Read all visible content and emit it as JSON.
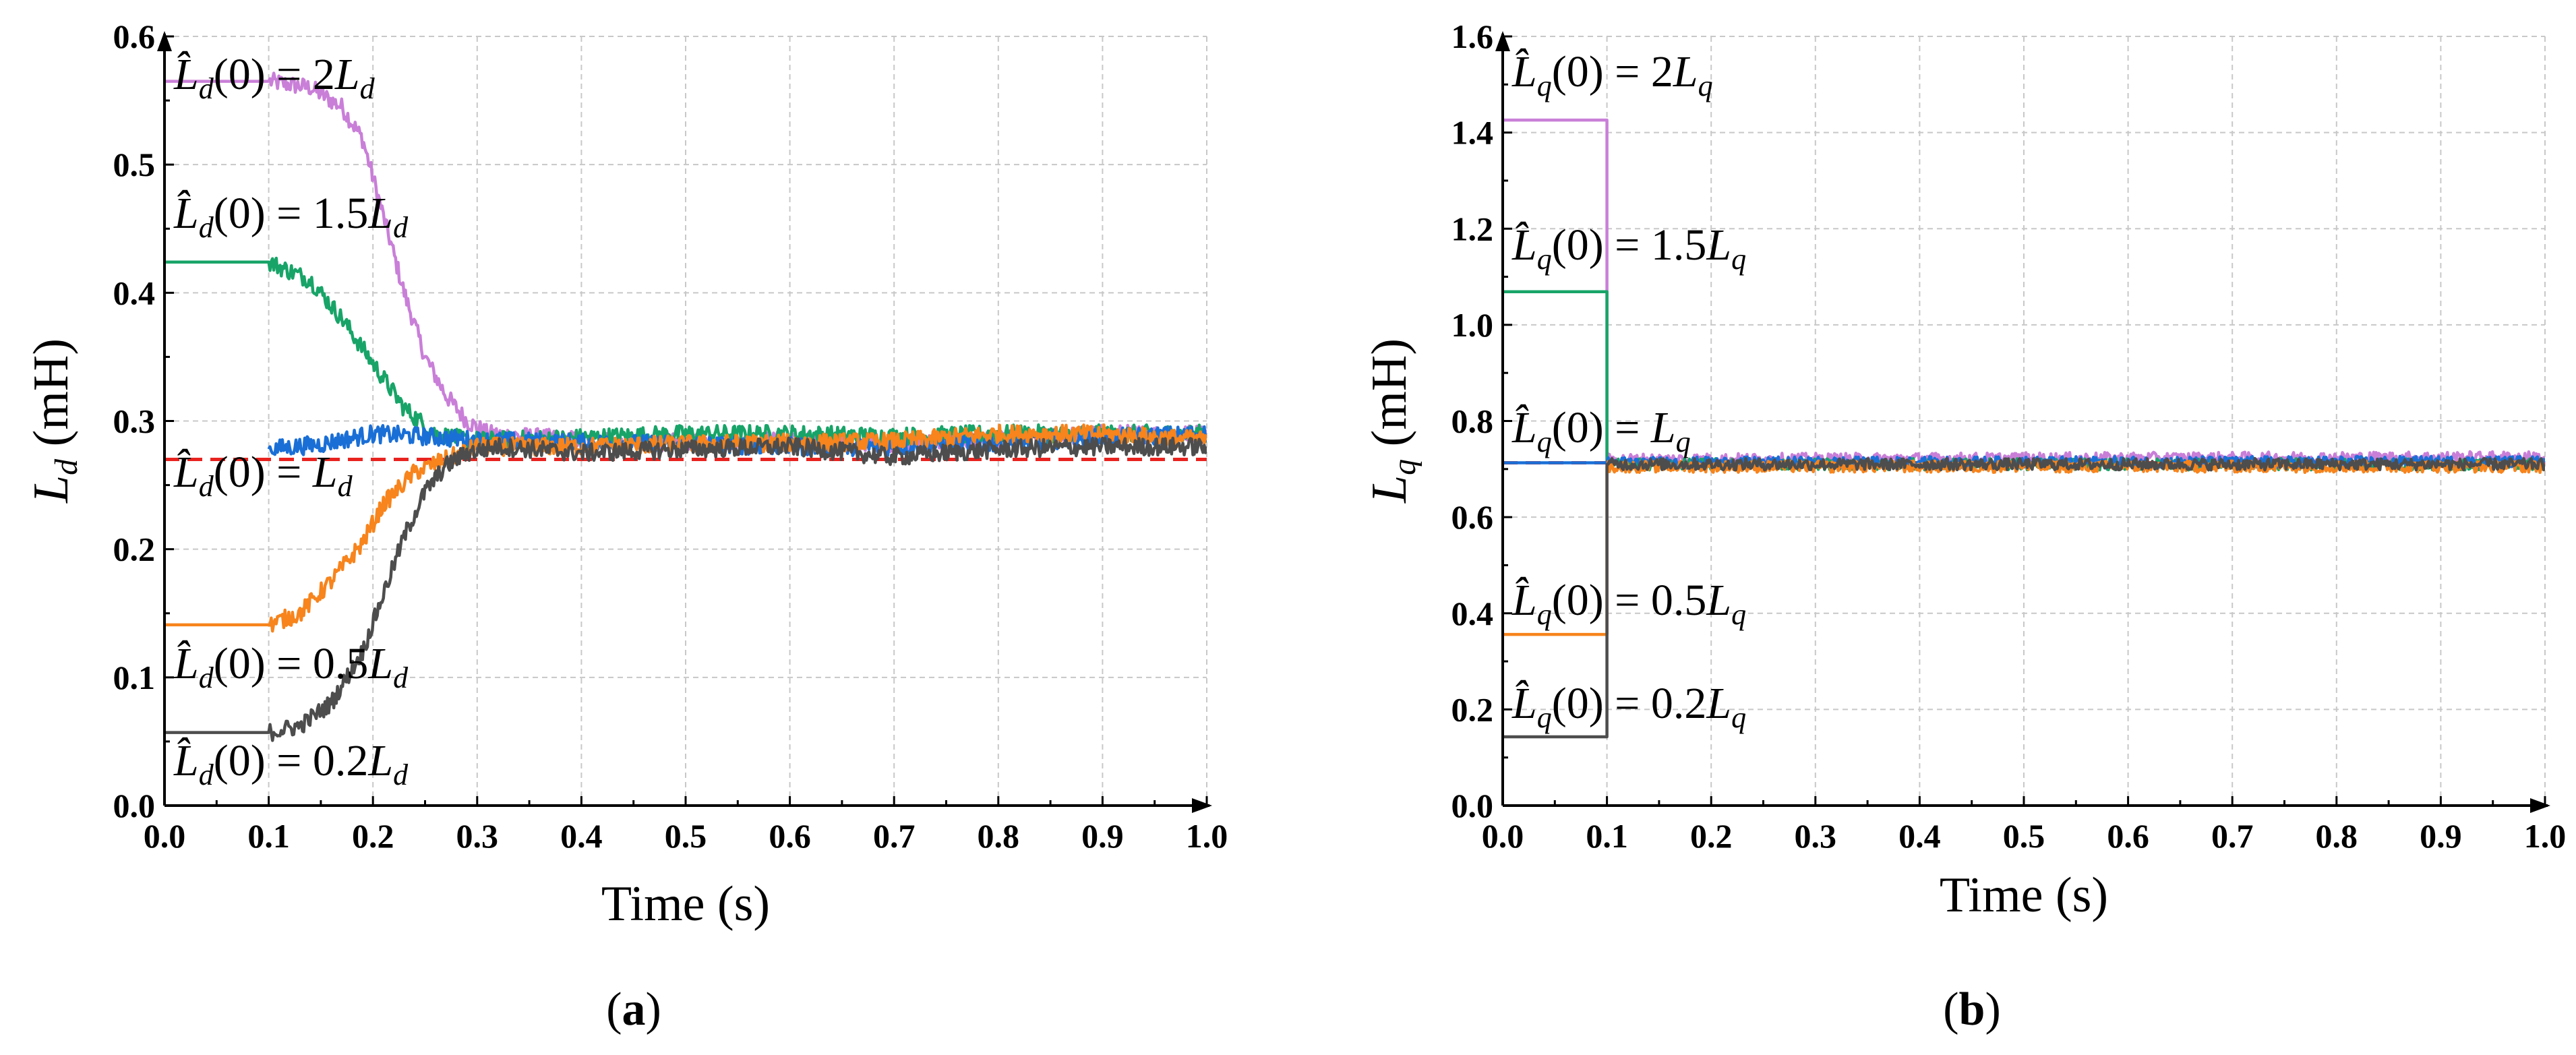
{
  "chart_data": [
    {
      "type": "line",
      "panel_label": "(a)",
      "panel_letter": "a",
      "xlabel": "Time (s)",
      "ylabel": "L̂d (mH)",
      "ylabel_main": "L",
      "ylabel_sub": "d",
      "ylabel_unit": " (mH)",
      "xlim": [
        0,
        1.0
      ],
      "ylim": [
        0,
        0.6
      ],
      "xticks": [
        "0.0",
        "0.1",
        "0.2",
        "0.3",
        "0.4",
        "0.5",
        "0.6",
        "0.7",
        "0.8",
        "0.9",
        "1.0"
      ],
      "yticks": [
        "0.0",
        "0.1",
        "0.2",
        "0.3",
        "0.4",
        "0.5",
        "0.6"
      ],
      "grid": true,
      "reference": {
        "name": "Ld",
        "value": 0.27,
        "color": "#e8231f",
        "style": "dashed"
      },
      "series": [
        {
          "name": "L̂d(0) = 2Ld",
          "label": {
            "pre": "(0) = 2",
            "post": ""
          },
          "color": "#c97fd8",
          "x": [
            0,
            0.1,
            0.14,
            0.17,
            0.19,
            0.21,
            0.23,
            0.25,
            0.27,
            0.29,
            0.31,
            0.4,
            0.5,
            0.6,
            0.7,
            0.8,
            0.9,
            1.0
          ],
          "y": [
            0.565,
            0.565,
            0.56,
            0.545,
            0.52,
            0.46,
            0.4,
            0.35,
            0.32,
            0.3,
            0.29,
            0.285,
            0.283,
            0.285,
            0.283,
            0.285,
            0.29,
            0.29
          ]
        },
        {
          "name": "L̂d(0) = 1.5Ld",
          "label": {
            "pre": "(0) = 1.5",
            "post": ""
          },
          "color": "#18a468",
          "x": [
            0,
            0.1,
            0.14,
            0.17,
            0.2,
            0.23,
            0.26,
            0.29,
            0.32,
            0.4,
            0.5,
            0.6,
            0.7,
            0.8,
            0.9,
            1.0
          ],
          "y": [
            0.424,
            0.424,
            0.41,
            0.38,
            0.345,
            0.31,
            0.29,
            0.285,
            0.285,
            0.287,
            0.29,
            0.29,
            0.288,
            0.29,
            0.29,
            0.29
          ]
        },
        {
          "name": "L̂d(0) = Ld",
          "label": {
            "pre": "(0) = ",
            "post": ""
          },
          "color": "#1a6fd6",
          "x": [
            0.1,
            0.15,
            0.2,
            0.25,
            0.3,
            0.4,
            0.5,
            0.6,
            0.7,
            0.8,
            0.9,
            1.0
          ],
          "y": [
            0.278,
            0.282,
            0.29,
            0.288,
            0.285,
            0.283,
            0.282,
            0.28,
            0.28,
            0.283,
            0.287,
            0.29
          ]
        },
        {
          "name": "L̂d(0) = 0.5Ld",
          "label": {
            "pre": "(0) = 0.5",
            "post": ""
          },
          "color": "#f7841c",
          "x": [
            0,
            0.1,
            0.13,
            0.16,
            0.19,
            0.21,
            0.24,
            0.27,
            0.3,
            0.4,
            0.5,
            0.6,
            0.7,
            0.8,
            0.9,
            1.0
          ],
          "y": [
            0.141,
            0.141,
            0.15,
            0.175,
            0.205,
            0.235,
            0.26,
            0.27,
            0.28,
            0.28,
            0.282,
            0.283,
            0.284,
            0.29,
            0.29,
            0.285
          ]
        },
        {
          "name": "L̂d(0) = 0.2Ld",
          "label": {
            "pre": "(0) = 0.2",
            "post": ""
          },
          "color": "#4d4d4d",
          "x": [
            0,
            0.1,
            0.13,
            0.16,
            0.19,
            0.21,
            0.23,
            0.25,
            0.27,
            0.29,
            0.32,
            0.4,
            0.5,
            0.6,
            0.7,
            0.8,
            0.9,
            1.0
          ],
          "y": [
            0.057,
            0.057,
            0.062,
            0.08,
            0.12,
            0.165,
            0.21,
            0.245,
            0.265,
            0.275,
            0.28,
            0.275,
            0.278,
            0.28,
            0.272,
            0.278,
            0.28,
            0.28
          ]
        }
      ]
    },
    {
      "type": "line",
      "panel_label": "(b)",
      "panel_letter": "b",
      "xlabel": "Time (s)",
      "ylabel": "L̂q (mH)",
      "ylabel_main": "L",
      "ylabel_sub": "q",
      "ylabel_unit": " (mH)",
      "xlim": [
        0,
        1.0
      ],
      "ylim": [
        0,
        1.6
      ],
      "xticks": [
        "0.0",
        "0.1",
        "0.2",
        "0.3",
        "0.4",
        "0.5",
        "0.6",
        "0.7",
        "0.8",
        "0.9",
        "1.0"
      ],
      "yticks": [
        "0.0",
        "0.2",
        "0.4",
        "0.6",
        "0.8",
        "1.0",
        "1.2",
        "1.4",
        "1.6"
      ],
      "grid": true,
      "reference": {
        "name": "Lq",
        "value": 0.713,
        "color": "#e8231f",
        "style": "dashed"
      },
      "series": [
        {
          "name": "L̂q(0) = 2Lq",
          "label": {
            "pre": "(0) = 2",
            "post": ""
          },
          "color": "#c97fd8",
          "x": [
            0,
            0.1,
            0.1,
            1.0
          ],
          "y": [
            1.426,
            1.426,
            0.72,
            0.725
          ]
        },
        {
          "name": "L̂q(0) = 1.5Lq",
          "label": {
            "pre": "(0) = 1.5",
            "post": ""
          },
          "color": "#18a468",
          "x": [
            0,
            0.1,
            0.1,
            1.0
          ],
          "y": [
            1.069,
            1.069,
            0.71,
            0.71
          ]
        },
        {
          "name": "L̂q(0) = Lq",
          "label": {
            "pre": "(0) = ",
            "post": ""
          },
          "color": "#1a6fd6",
          "x": [
            0,
            0.1,
            1.0
          ],
          "y": [
            0.713,
            0.713,
            0.715
          ]
        },
        {
          "name": "L̂q(0) = 0.5Lq",
          "label": {
            "pre": "(0) = 0.5",
            "post": ""
          },
          "color": "#f7841c",
          "x": [
            0,
            0.1,
            0.1,
            1.0
          ],
          "y": [
            0.356,
            0.356,
            0.705,
            0.705
          ]
        },
        {
          "name": "L̂q(0) = 0.2Lq",
          "label": {
            "pre": "(0) = 0.2",
            "post": ""
          },
          "color": "#4d4d4d",
          "x": [
            0,
            0.1,
            0.1,
            1.0
          ],
          "y": [
            0.143,
            0.143,
            0.71,
            0.71
          ]
        }
      ]
    }
  ]
}
